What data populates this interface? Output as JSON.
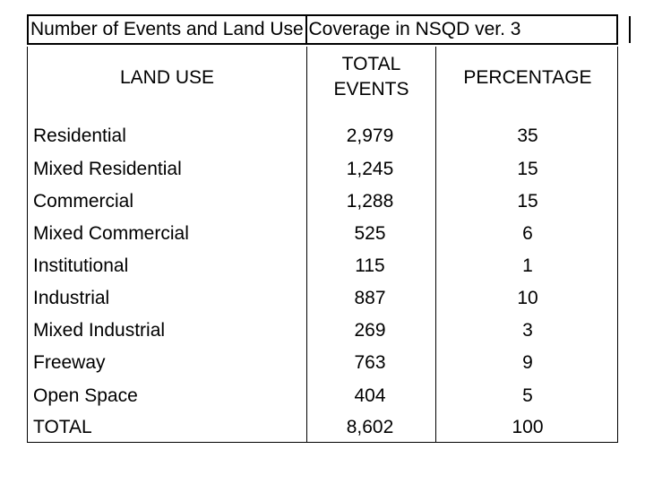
{
  "table": {
    "title": "Number of Events and Land Use Coverage in NSQD ver. 3",
    "headers": {
      "land_use": "LAND USE",
      "total_events_line1": "TOTAL",
      "total_events_line2": "EVENTS",
      "percentage": "PERCENTAGE"
    },
    "rows": [
      {
        "land_use": "Residential",
        "total_events": "2,979",
        "percentage": "35"
      },
      {
        "land_use": "Mixed Residential",
        "total_events": "1,245",
        "percentage": "15"
      },
      {
        "land_use": "Commercial",
        "total_events": "1,288",
        "percentage": "15"
      },
      {
        "land_use": "Mixed Commercial",
        "total_events": "525",
        "percentage": "6"
      },
      {
        "land_use": "Institutional",
        "total_events": "115",
        "percentage": "1"
      },
      {
        "land_use": "Industrial",
        "total_events": "887",
        "percentage": "10"
      },
      {
        "land_use": "Mixed Industrial",
        "total_events": "269",
        "percentage": "3"
      },
      {
        "land_use": "Freeway",
        "total_events": "763",
        "percentage": "9"
      },
      {
        "land_use": "Open Space",
        "total_events": "404",
        "percentage": "5"
      },
      {
        "land_use": "TOTAL",
        "total_events": "8,602",
        "percentage": "100"
      }
    ]
  }
}
